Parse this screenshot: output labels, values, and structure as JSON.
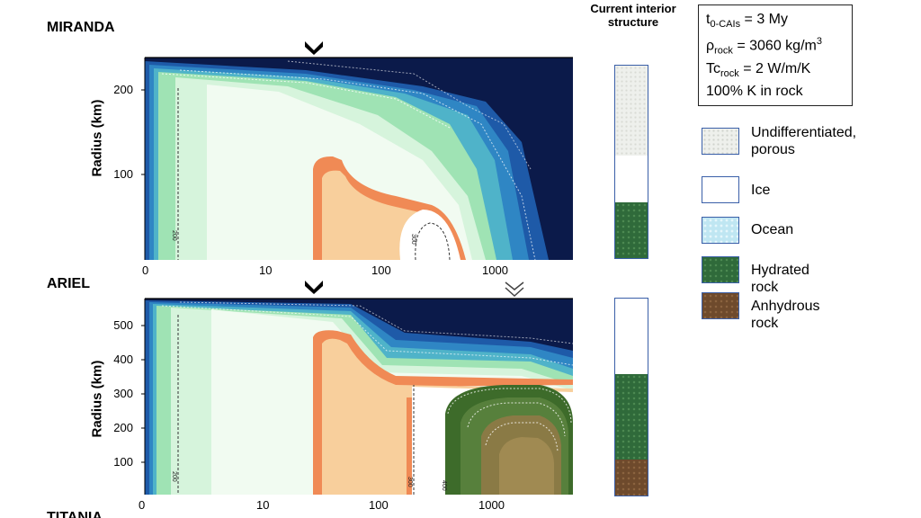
{
  "panels": {
    "miranda": {
      "label": "MIRANDA",
      "ylabel": "Radius (km)",
      "yticks": [
        "200",
        "100"
      ],
      "xticks": [
        "0",
        "10",
        "100",
        "1000"
      ],
      "contour_labels": [
        "200",
        "300"
      ]
    },
    "ariel": {
      "label": "ARIEL",
      "ylabel": "Radius (km)",
      "yticks": [
        "500",
        "400",
        "300",
        "200",
        "100"
      ],
      "xticks": [
        "0",
        "10",
        "100",
        "1000"
      ],
      "contour_labels": [
        "200",
        "300",
        "400"
      ]
    },
    "titania_partial": "TITANIA"
  },
  "column_title": "Current interior structure",
  "params": {
    "line1_main": "t",
    "line1_sub": "0-CAIs",
    "line1_rest": " = 3 My",
    "line2_main": "ρ",
    "line2_sub": "rock",
    "line2_rest": " = 3060 kg/m",
    "line2_sup": "3",
    "line3_main": "Tc",
    "line3_sub": "rock",
    "line3_rest": " = 2 W/m/K",
    "line4": "100% K in rock"
  },
  "legend": [
    {
      "label": "Undifferentiated, porous",
      "color": "#eef0ec"
    },
    {
      "label": "Ice",
      "color": "#ffffff"
    },
    {
      "label": "Ocean",
      "color": "#bfe6f2"
    },
    {
      "label": "Hydrated rock",
      "color": "#2f6a3a"
    },
    {
      "label": "Anhydrous rock",
      "color": "#6e4a2c"
    }
  ],
  "colors": {
    "deep_navy": "#0b1a4a",
    "blue": "#1e5aa8",
    "light_green": "#b6ecc2",
    "mint": "#e8f8ea",
    "orange": "#f08a55",
    "peach": "#f8cf9c",
    "hydrated_green": "#3d6b2a",
    "anhydrous_brown": "#7a4f2e"
  }
}
